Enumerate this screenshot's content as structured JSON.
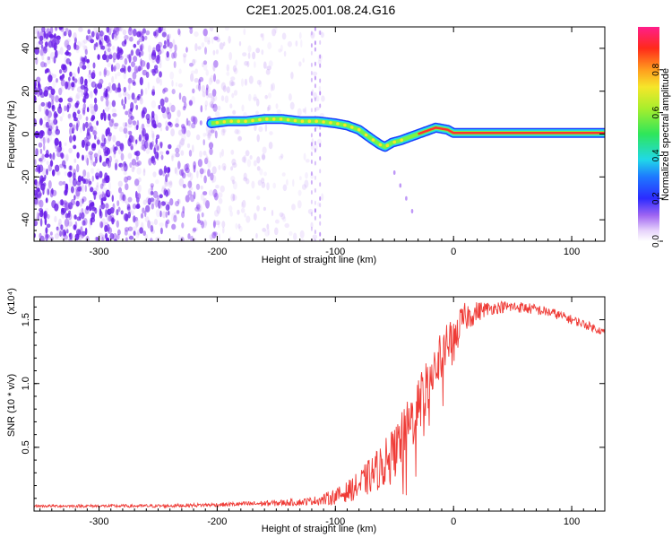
{
  "title": "C2E1.2025.001.08.24.G16",
  "colors": {
    "spectrogram_purple": "#7a2cf0",
    "snr_line": "#ef3b36",
    "ridge_outline": "#1a3cff",
    "ridge_fill": "#26d9e6",
    "ridge_core": "#ff3030",
    "ridge_mid": "#7cf542"
  },
  "chart_data": [
    {
      "type": "heatmap",
      "name": "spectrogram",
      "xlabel": "Height of straight line (km)",
      "ylabel": "Frequency (Hz)",
      "xlim": [
        -355,
        128
      ],
      "ylim": [
        -50,
        50
      ],
      "xticks": [
        -300,
        -200,
        -100,
        0,
        100
      ],
      "yticks": [
        -40,
        -20,
        0,
        20,
        40
      ],
      "grid": false,
      "ridge_x": [
        -205,
        -190,
        -175,
        -160,
        -145,
        -130,
        -115,
        -100,
        -90,
        -80,
        -70,
        -62,
        -58,
        -52,
        -45,
        -35,
        -25,
        -15,
        -5,
        0,
        10,
        128
      ],
      "ridge_freq": [
        5,
        6,
        6,
        7,
        7,
        6,
        6,
        5,
        4,
        2,
        -2,
        -5,
        -6,
        -4,
        -3,
        -1,
        1,
        3,
        2,
        0.5,
        0.5,
        0.5
      ],
      "colorbar": {
        "label": "Normalized spectral amplitude",
        "range": [
          0,
          1
        ],
        "ticks": [
          "0.0",
          "0.2",
          "0.4",
          "0.6",
          "0.8"
        ]
      }
    },
    {
      "type": "line",
      "name": "snr",
      "xlabel": "Height of straight line (km)",
      "ylabel": "SNR (10 * v/v)",
      "scale_label": "(x10⁴)",
      "xlim": [
        -355,
        128
      ],
      "ylim": [
        0,
        1.68
      ],
      "xticks": [
        -300,
        -200,
        -100,
        0,
        100
      ],
      "yticks": [
        "0.5",
        "1.0",
        "1.5"
      ],
      "ytick_values": [
        0.5,
        1.0,
        1.5
      ],
      "grid": false,
      "envelope_x": [
        -355,
        -250,
        -200,
        -160,
        -130,
        -110,
        -95,
        -80,
        -70,
        -60,
        -50,
        -40,
        -30,
        -20,
        -10,
        0,
        10,
        25,
        40,
        55,
        70,
        85,
        100,
        115,
        128
      ],
      "envelope_y": [
        0.04,
        0.04,
        0.05,
        0.06,
        0.07,
        0.09,
        0.13,
        0.2,
        0.28,
        0.36,
        0.46,
        0.62,
        0.82,
        1.05,
        1.22,
        1.4,
        1.52,
        1.58,
        1.6,
        1.6,
        1.58,
        1.55,
        1.5,
        1.45,
        1.4
      ],
      "noise_x": [
        -355,
        -200,
        -120,
        -90,
        -60,
        -30,
        0,
        30,
        128
      ],
      "noise_amp": [
        0.01,
        0.015,
        0.03,
        0.08,
        0.18,
        0.25,
        0.15,
        0.05,
        0.03
      ]
    }
  ]
}
